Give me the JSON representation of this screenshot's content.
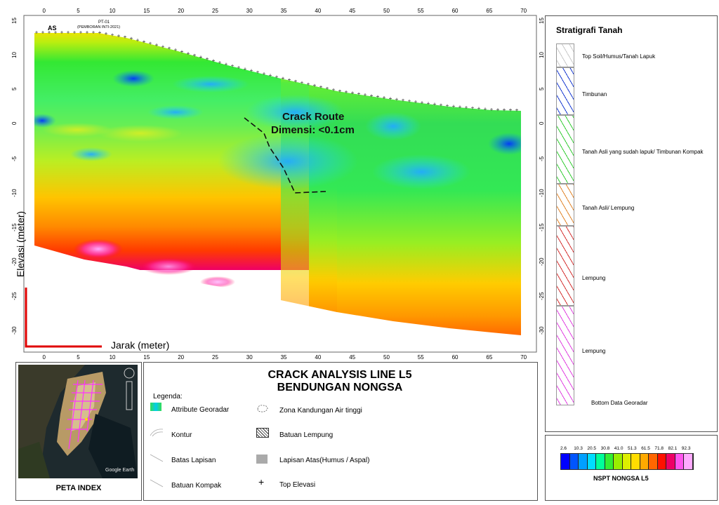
{
  "profile": {
    "title_lines": [
      "CRACK ANALYSIS LINE L5",
      "BENDUNGAN NONGSA"
    ],
    "x_axis_label": "Jarak (meter)",
    "y_axis_label": "Elevasi (meter)",
    "x_ticks": [
      "0",
      "5",
      "10",
      "15",
      "20",
      "25",
      "30",
      "35",
      "40",
      "45",
      "50",
      "55",
      "60",
      "65",
      "70"
    ],
    "y_ticks": [
      "15",
      "10",
      "5",
      "0",
      "-5",
      "-10",
      "-15",
      "-20",
      "-25",
      "-30"
    ],
    "borehole_top_label": "AS",
    "borehole_label": "PT-01",
    "borehole_sublabel": "(PEMBORAN INTI-2021)",
    "crack_title": "Crack Route",
    "crack_dimension": "Dimensi: <0.1cm"
  },
  "stratigraphy": {
    "title": "Stratigrafi Tanah",
    "layers": [
      {
        "label": "Top Soil/Humus/Tanah Lapuk",
        "color": "#c8c8c8"
      },
      {
        "label": "Timbunan",
        "color": "#1a3bd1"
      },
      {
        "label": "Tanah Asli yang sudah lapuk/ Timbunan Kompak",
        "color": "#33cc33"
      },
      {
        "label": "Tanah Asli/ Lempung",
        "color": "#e0842a"
      },
      {
        "label": "Lempung",
        "color": "#d43232"
      },
      {
        "label": "Lempung",
        "color": "#e040e0"
      }
    ],
    "bottom_label": "Bottom Data Georadar"
  },
  "colorbar": {
    "title": "NSPT NONGSA L5",
    "ticks": [
      "2.6",
      "10.3",
      "20.5",
      "30.8",
      "41.0",
      "51.3",
      "61.5",
      "71.8",
      "82.1",
      "92.3"
    ],
    "colors": [
      "#0000ff",
      "#0055ff",
      "#00a0ff",
      "#00ddff",
      "#00ff99",
      "#33ee33",
      "#99ee00",
      "#ddee00",
      "#ffdd00",
      "#ffaa00",
      "#ff6600",
      "#ff1100",
      "#ee0066",
      "#ff55ee",
      "#ffaaff"
    ]
  },
  "legend": {
    "heading": "Legenda:",
    "items_left": [
      "Attribute Georadar",
      "Kontur",
      "Batas Lapisan",
      "Batuan Kompak"
    ],
    "items_right": [
      "Zona Kandungan Air tinggi",
      "Batuan Lempung",
      "Lapisan Atas(Humus / Aspal)",
      "Top Elevasi"
    ]
  },
  "index_map": {
    "label": "PETA INDEX",
    "watermark": "Google Earth"
  }
}
